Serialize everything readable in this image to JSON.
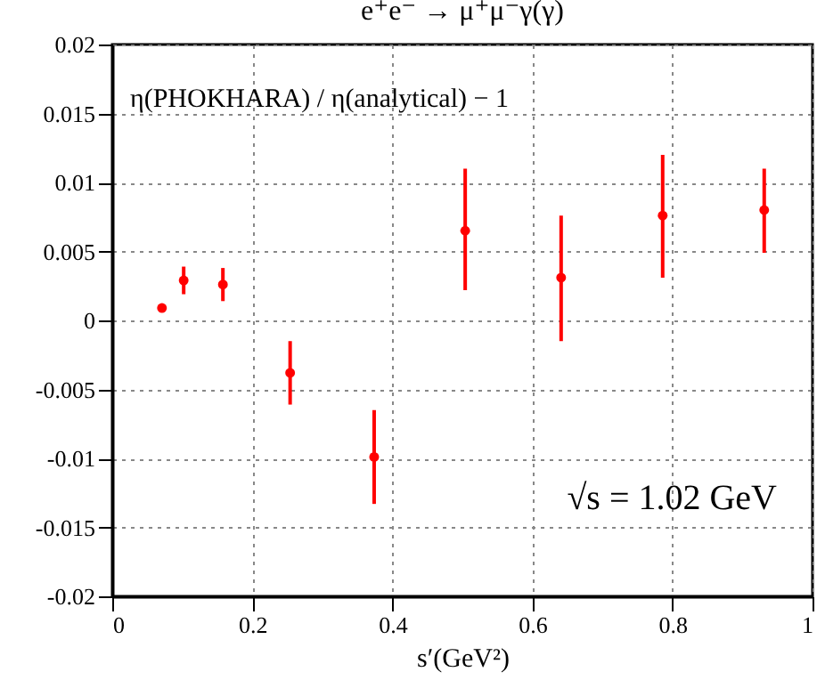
{
  "chart_data": {
    "type": "scatter",
    "title": "e⁺e⁻ → μ⁺μ⁻γ(γ)",
    "xlabel": "s′(GeV²)",
    "annotations": [
      "η(PHOKHARA) / η(analytical) − 1",
      "√s = 1.02 GeV"
    ],
    "x": [
      0.071,
      0.102,
      0.158,
      0.254,
      0.374,
      0.504,
      0.641,
      0.786,
      0.931
    ],
    "values": [
      0.0009,
      0.0029,
      0.0026,
      -0.0038,
      -0.0099,
      0.0065,
      0.0031,
      0.0076,
      0.008
    ],
    "errors": [
      null,
      0.001,
      0.0012,
      0.0023,
      0.0034,
      [
        0.0022,
        0.011
      ],
      [
        -0.0015,
        0.0076
      ],
      [
        0.0031,
        0.012
      ],
      [
        0.0049,
        0.011
      ]
    ],
    "color": "#ff0000",
    "marker": "circle",
    "xlim": [
      0,
      1
    ],
    "xticks": [
      0,
      0.2,
      0.4,
      0.6,
      0.8,
      1
    ],
    "ylim": [
      -0.02,
      0.02
    ],
    "yticks": [
      -0.02,
      -0.015,
      -0.01,
      -0.005,
      0,
      0.005,
      0.01,
      0.015,
      0.02
    ],
    "grid": true
  }
}
